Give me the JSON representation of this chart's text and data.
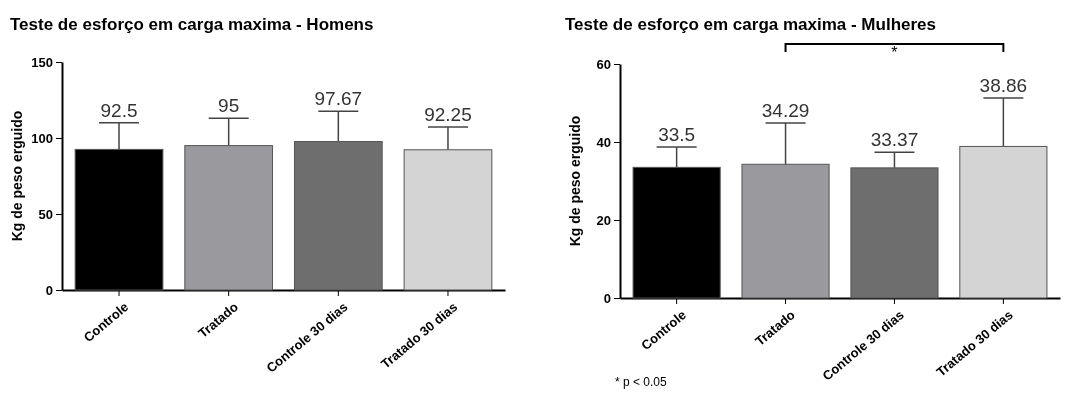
{
  "chart_data": [
    {
      "type": "bar",
      "title": "Teste de esforço em carga maxima - Homens",
      "ylabel": "Kg de peso erguido",
      "categories": [
        "Controle",
        "Tratado",
        "Controle 30 dias",
        "Tratado 30 dias"
      ],
      "values": [
        92.5,
        95,
        97.67,
        92.25
      ],
      "colors": [
        "#000000",
        "#9a9a9e",
        "#6e6e6e",
        "#d4d4d4"
      ],
      "errors": [
        17.5,
        18,
        20,
        15
      ],
      "data_labels": true,
      "ylim": [
        0,
        150
      ],
      "yticks": [
        0,
        50,
        100,
        150
      ],
      "grid": false
    },
    {
      "type": "bar",
      "title": "Teste de esforço em carga maxima - Mulheres",
      "ylabel": "Kg de peso erguido",
      "categories": [
        "Controle",
        "Tratado",
        "Controle 30 dias",
        "Tratado 30 dias"
      ],
      "values": [
        33.5,
        34.29,
        33.37,
        38.86
      ],
      "colors": [
        "#000000",
        "#9a9a9e",
        "#6e6e6e",
        "#d4d4d4"
      ],
      "errors": [
        5.2,
        10.6,
        4,
        12.4
      ],
      "data_labels": true,
      "ylim": [
        0,
        60
      ],
      "yticks": [
        0,
        20,
        40,
        60
      ],
      "grid": false,
      "annotations": [
        "*",
        "* p < 0.05"
      ]
    }
  ]
}
